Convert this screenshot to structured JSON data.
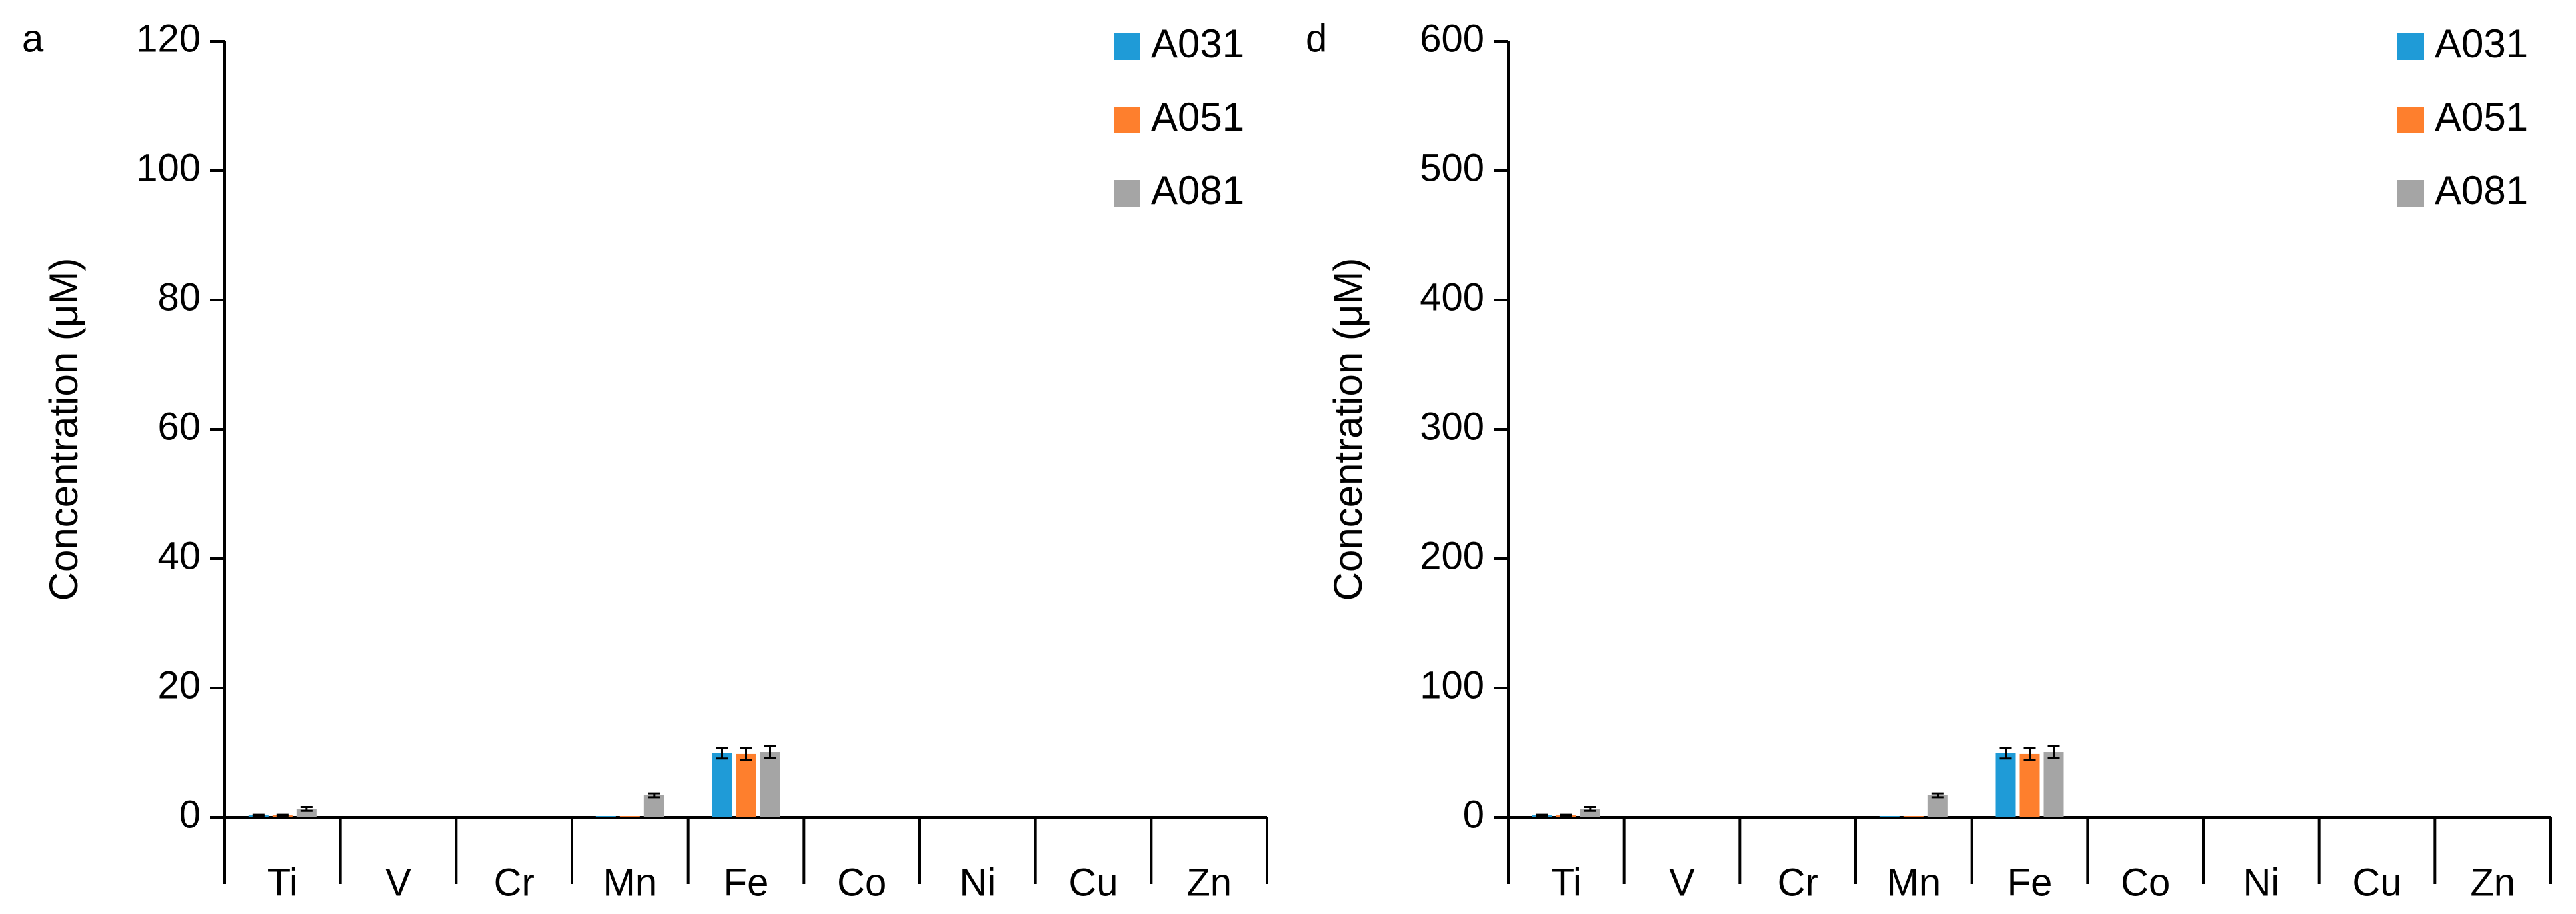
{
  "colors": {
    "A031": "#1f9bd7",
    "A051": "#fe7f2d",
    "A081": "#a5a5a5",
    "axis": "#000000",
    "error_bar": "#000000"
  },
  "chart_data": [
    {
      "type": "bar",
      "panel_label": "a",
      "ylabel": "Concentration (μM)",
      "ylim": [
        0,
        120
      ],
      "yticks": [
        "0",
        "20",
        "40",
        "60",
        "80",
        "100",
        "120"
      ],
      "categories": [
        "Ti",
        "V",
        "Cr",
        "Mn",
        "Fe",
        "Co",
        "Ni",
        "Cu",
        "Zn"
      ],
      "legend_position": "top-right",
      "series": [
        {
          "name": "A031",
          "values": [
            0.3,
            0,
            0.1,
            0.2,
            9.9,
            0,
            0.1,
            0,
            0
          ],
          "errors": [
            0.1,
            0,
            0,
            0,
            0.8,
            0,
            0,
            0,
            0
          ]
        },
        {
          "name": "A051",
          "values": [
            0.3,
            0,
            0.1,
            0.2,
            9.8,
            0,
            0.1,
            0,
            0
          ],
          "errors": [
            0.1,
            0,
            0,
            0,
            0.9,
            0,
            0,
            0,
            0
          ]
        },
        {
          "name": "A081",
          "values": [
            1.3,
            0,
            0.1,
            3.4,
            10.1,
            0,
            0.1,
            0,
            0
          ],
          "errors": [
            0.3,
            0,
            0,
            0.3,
            0.9,
            0,
            0,
            0,
            0
          ]
        }
      ]
    },
    {
      "type": "bar",
      "panel_label": "d",
      "ylabel": "Concentration (μM)",
      "ylim": [
        0,
        600
      ],
      "yticks": [
        "0",
        "100",
        "200",
        "300",
        "400",
        "500",
        "600"
      ],
      "categories": [
        "Ti",
        "V",
        "Cr",
        "Mn",
        "Fe",
        "Co",
        "Ni",
        "Cu",
        "Zn"
      ],
      "legend_position": "top-right",
      "series": [
        {
          "name": "A031",
          "values": [
            1.5,
            0,
            0.5,
            1,
            49.5,
            0,
            0.5,
            0,
            0
          ],
          "errors": [
            0.5,
            0,
            0,
            0,
            4,
            0,
            0,
            0,
            0
          ]
        },
        {
          "name": "A051",
          "values": [
            1.5,
            0,
            0.5,
            1,
            49,
            0,
            0.5,
            0,
            0
          ],
          "errors": [
            0.5,
            0,
            0,
            0,
            4.5,
            0,
            0,
            0,
            0
          ]
        },
        {
          "name": "A081",
          "values": [
            6.5,
            0,
            0.5,
            17,
            50.5,
            0,
            0.5,
            0,
            0
          ],
          "errors": [
            1.5,
            0,
            0,
            1.5,
            4.5,
            0,
            0,
            0,
            0
          ]
        }
      ]
    }
  ]
}
